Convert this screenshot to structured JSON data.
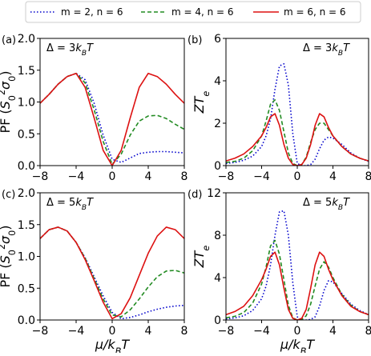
{
  "legend": [
    {
      "label": "m = 2, n = 6",
      "color": "#0000cc",
      "dash": "dotted"
    },
    {
      "label": "m = 4, n = 6",
      "color": "#228b22",
      "dash": "dashed"
    },
    {
      "label": "m = 6, n = 6",
      "color": "#dd1111",
      "dash": "solid"
    }
  ],
  "chart_data": [
    {
      "panel": "(a)",
      "type": "line",
      "annotation": "Δ = 3kBT",
      "xlabel": "",
      "ylabel": "PF (S0²σ0)",
      "xlim": [
        -8,
        8
      ],
      "ylim": [
        0,
        2.0
      ],
      "xticks": [
        "−8",
        "−4",
        "0",
        "4",
        "8"
      ],
      "yticks": [
        "0.0",
        "0.5",
        "1.0",
        "1.5",
        "2.0"
      ],
      "x": [
        -8,
        -7,
        -6,
        -5,
        -4,
        -3,
        -2,
        -1,
        0,
        1,
        2,
        3,
        4,
        5,
        6,
        7,
        8
      ],
      "series": [
        {
          "name": "m = 2, n = 6",
          "values": [
            0.98,
            1.12,
            1.28,
            1.4,
            1.45,
            1.35,
            0.98,
            0.48,
            0.1,
            0.05,
            0.12,
            0.19,
            0.21,
            0.22,
            0.22,
            0.21,
            0.2
          ]
        },
        {
          "name": "m = 4, n = 6",
          "values": [
            0.98,
            1.12,
            1.28,
            1.4,
            1.45,
            1.3,
            0.88,
            0.38,
            0.02,
            0.18,
            0.48,
            0.7,
            0.78,
            0.79,
            0.74,
            0.65,
            0.57
          ]
        },
        {
          "name": "m = 6, n = 6",
          "values": [
            0.98,
            1.12,
            1.28,
            1.4,
            1.45,
            1.23,
            0.75,
            0.24,
            0.0,
            0.24,
            0.75,
            1.23,
            1.45,
            1.4,
            1.28,
            1.12,
            0.98
          ]
        }
      ]
    },
    {
      "panel": "(b)",
      "type": "line",
      "annotation": "Δ = 3kBT",
      "xlabel": "",
      "ylabel": "ZTe",
      "xlim": [
        -8,
        8
      ],
      "ylim": [
        0,
        6
      ],
      "xticks": [
        "−8",
        "−4",
        "0",
        "4",
        "8"
      ],
      "yticks": [
        "0",
        "2",
        "4",
        "6"
      ],
      "x": [
        -8,
        -7,
        -6,
        -5,
        -4,
        -3.5,
        -3,
        -2.5,
        -2,
        -1.5,
        -1,
        -0.5,
        0,
        0.5,
        1,
        1.5,
        2,
        2.5,
        3,
        3.5,
        4,
        5,
        6,
        7,
        8
      ],
      "series": [
        {
          "name": "m = 2, n = 6",
          "values": [
            0.1,
            0.15,
            0.25,
            0.45,
            0.9,
            1.4,
            2.2,
            3.6,
            4.7,
            4.8,
            3.8,
            1.5,
            0.1,
            0.0,
            0.0,
            0.05,
            0.3,
            0.8,
            1.2,
            1.35,
            1.3,
            1.0,
            0.6,
            0.35,
            0.2
          ]
        },
        {
          "name": "m = 4, n = 6",
          "values": [
            0.15,
            0.2,
            0.35,
            0.7,
            1.4,
            2.1,
            2.9,
            3.1,
            2.6,
            1.6,
            0.6,
            0.1,
            0.0,
            0.05,
            0.4,
            1.1,
            1.7,
            2.0,
            2.0,
            1.7,
            1.4,
            0.9,
            0.55,
            0.35,
            0.22
          ]
        },
        {
          "name": "m = 6, n = 6",
          "values": [
            0.22,
            0.35,
            0.55,
            0.9,
            1.4,
            1.8,
            2.3,
            2.45,
            1.9,
            1.0,
            0.35,
            0.05,
            0.0,
            0.05,
            0.35,
            1.0,
            1.9,
            2.45,
            2.3,
            1.8,
            1.4,
            0.9,
            0.55,
            0.35,
            0.22
          ]
        }
      ]
    },
    {
      "panel": "(c)",
      "type": "line",
      "annotation": "Δ = 5kBT",
      "xlabel": "μ/kBT",
      "ylabel": "PF (S0²σ0)",
      "xlim": [
        -8,
        8
      ],
      "ylim": [
        0,
        2.0
      ],
      "xticks": [
        "−8",
        "−4",
        "0",
        "4",
        "8"
      ],
      "yticks": [
        "0.0",
        "0.5",
        "1.0",
        "1.5",
        "2.0"
      ],
      "x": [
        -8,
        -7,
        -6,
        -5,
        -4,
        -3,
        -2,
        -1,
        0,
        1,
        2,
        3,
        4,
        5,
        6,
        7,
        8
      ],
      "series": [
        {
          "name": "m = 2, n = 6",
          "values": [
            1.28,
            1.42,
            1.46,
            1.4,
            1.22,
            0.98,
            0.68,
            0.38,
            0.12,
            0.02,
            0.04,
            0.08,
            0.13,
            0.17,
            0.2,
            0.22,
            0.23
          ]
        },
        {
          "name": "m = 4, n = 6",
          "values": [
            1.28,
            1.42,
            1.46,
            1.4,
            1.22,
            0.97,
            0.65,
            0.33,
            0.08,
            0.05,
            0.16,
            0.33,
            0.52,
            0.68,
            0.77,
            0.78,
            0.74
          ]
        },
        {
          "name": "m = 6, n = 6",
          "values": [
            1.28,
            1.42,
            1.46,
            1.4,
            1.22,
            0.95,
            0.62,
            0.28,
            0.02,
            0.1,
            0.35,
            0.7,
            1.05,
            1.32,
            1.46,
            1.42,
            1.28
          ]
        }
      ]
    },
    {
      "panel": "(d)",
      "type": "line",
      "annotation": "Δ = 5kBT",
      "xlabel": "μ/kBT",
      "ylabel": "ZTe",
      "xlim": [
        -8,
        8
      ],
      "ylim": [
        0,
        12
      ],
      "xticks": [
        "−8",
        "−4",
        "0",
        "4",
        "8"
      ],
      "yticks": [
        "0",
        "4",
        "8",
        "12"
      ],
      "x": [
        -8,
        -7,
        -6,
        -5,
        -4,
        -3.5,
        -3,
        -2.5,
        -2,
        -1.5,
        -1,
        -0.5,
        0,
        0.5,
        1,
        1.5,
        2,
        2.5,
        3,
        3.5,
        4,
        5,
        6,
        7,
        8
      ],
      "series": [
        {
          "name": "m = 2, n = 6",
          "values": [
            0.1,
            0.2,
            0.4,
            0.9,
            2.0,
            3.2,
            5.2,
            8.0,
            10.2,
            10.3,
            8.0,
            3.5,
            0.3,
            0.0,
            0.0,
            0.05,
            0.3,
            1.3,
            2.8,
            3.7,
            3.6,
            2.5,
            1.5,
            0.9,
            0.5
          ]
        },
        {
          "name": "m = 4, n = 6",
          "values": [
            0.2,
            0.35,
            0.7,
            1.6,
            3.4,
            5.0,
            7.0,
            7.5,
            6.2,
            3.8,
            1.4,
            0.2,
            0.0,
            0.05,
            0.4,
            1.5,
            3.2,
            4.8,
            5.5,
            5.0,
            4.0,
            2.4,
            1.4,
            0.8,
            0.5
          ]
        },
        {
          "name": "m = 6, n = 6",
          "values": [
            0.5,
            0.8,
            1.3,
            2.3,
            3.8,
            4.8,
            6.0,
            6.4,
            5.2,
            3.0,
            1.0,
            0.15,
            0.0,
            0.15,
            1.0,
            3.0,
            5.2,
            6.4,
            6.0,
            4.8,
            3.8,
            2.3,
            1.3,
            0.8,
            0.5
          ]
        }
      ]
    }
  ]
}
